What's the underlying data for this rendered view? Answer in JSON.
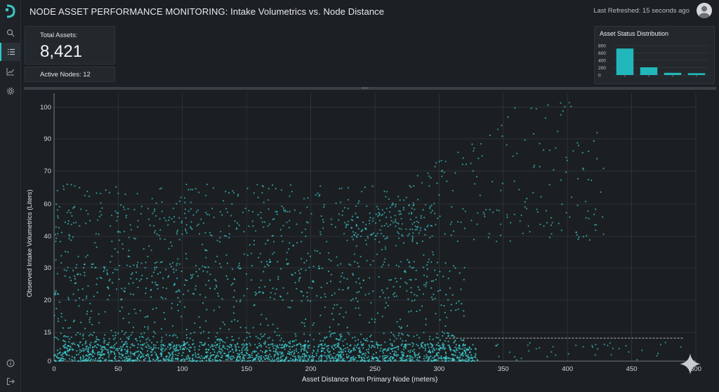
{
  "header": {
    "title": "NODE ASSET PERFORMANCE MONITORING: Intake Volumetrics vs. Node Distance",
    "refreshed": "Last Refreshed: 15 seconds ago"
  },
  "sidebar": {
    "items": [
      {
        "name": "search",
        "icon": "search-icon"
      },
      {
        "name": "list",
        "icon": "list-icon",
        "active": true
      },
      {
        "name": "analytics",
        "icon": "line-chart-icon"
      },
      {
        "name": "settings",
        "icon": "gear-icon"
      }
    ],
    "bottom": [
      {
        "name": "help",
        "icon": "info-icon"
      },
      {
        "name": "logout",
        "icon": "logout-icon"
      }
    ]
  },
  "kpis": {
    "total_label": "Total Assets:",
    "total_value": "8,421",
    "nodes_label": "Active Nodes: 12"
  },
  "status_chart": {
    "title": "Asset Status Distribution",
    "y_ticks": [
      "800",
      "600",
      "400",
      "200",
      "0"
    ],
    "values": [
      720,
      210,
      60,
      50
    ],
    "ylim": [
      0,
      800
    ],
    "color": "#22b8bb"
  },
  "chart_data": {
    "type": "scatter",
    "xlabel": "Asset Distance from Primary Node (meters)",
    "ylabel": "Observed Intake Volumetrics (Liters)",
    "x_ticks": [
      "0",
      "50",
      "100",
      "150",
      "200",
      "250",
      "300",
      "350",
      "400",
      "450",
      "500"
    ],
    "y_ticks": [
      "0",
      "15",
      "15",
      "20",
      "30",
      "40",
      "60",
      "70",
      "90",
      "100"
    ],
    "xlim": [
      0,
      500
    ],
    "grid": true,
    "point_color": "#3fd3d6",
    "reference_line": {
      "y": 12,
      "x_start": 305,
      "x_end": 490,
      "style": "dashed"
    },
    "clusters": [
      {
        "x": [
          0,
          330
        ],
        "y": [
          0,
          8
        ],
        "density": "very-high"
      },
      {
        "x": [
          0,
          320
        ],
        "y": [
          8,
          30
        ],
        "density": "high"
      },
      {
        "x": [
          0,
          300
        ],
        "y": [
          30,
          65
        ],
        "density": "medium"
      },
      {
        "x": [
          280,
          430
        ],
        "y": [
          40,
          103
        ],
        "density": "low"
      }
    ]
  }
}
